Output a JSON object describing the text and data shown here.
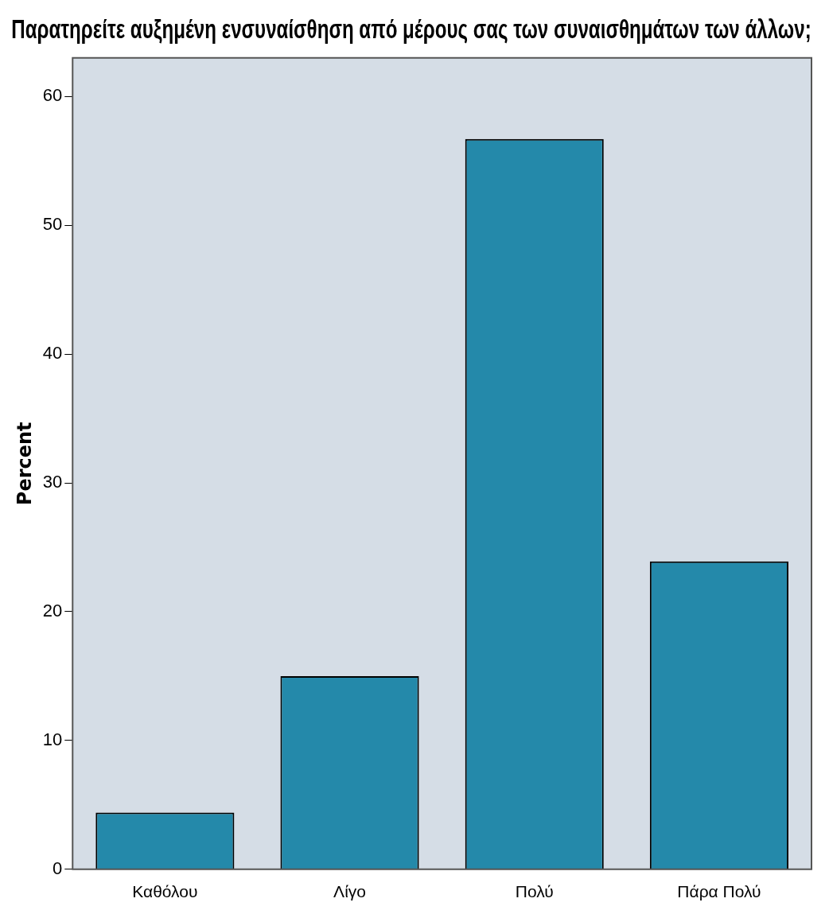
{
  "chart_data": {
    "type": "bar",
    "title": "Παρατηρείτε αυξημένη ενσυναίσθηση από μέρους σας των συναισθημάτων των άλλων;",
    "ylabel": "Percent",
    "categories": [
      "Καθόλου",
      "Λίγο",
      "Πολύ",
      "Πάρα Πολύ"
    ],
    "values": [
      4.4,
      15.0,
      56.7,
      23.9
    ],
    "color": "#2489aa",
    "ylim": [
      0,
      63
    ],
    "yticks": [
      0,
      10,
      20,
      30,
      40,
      50,
      60
    ],
    "grid": false,
    "legend": false
  }
}
